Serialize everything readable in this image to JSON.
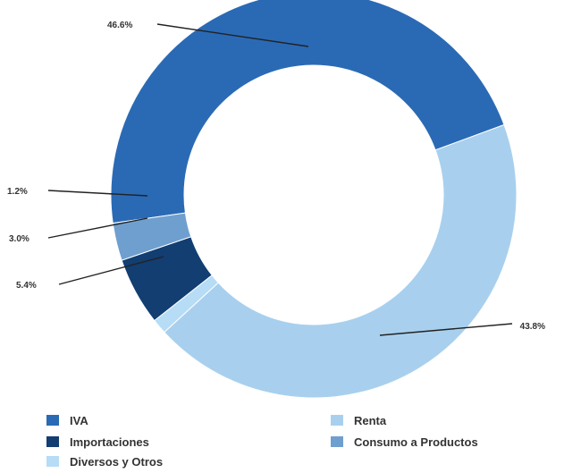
{
  "chart_data": {
    "type": "pie",
    "donut": true,
    "title": "",
    "categories": [
      "IVA",
      "Renta",
      "Diversos y Otros",
      "Importaciones",
      "Consumo a Productos"
    ],
    "values": [
      46.6,
      43.8,
      1.2,
      5.4,
      3.0
    ],
    "value_labels": [
      "46.6%",
      "43.8%",
      "1.2%",
      "5.4%",
      "3.0%"
    ],
    "colors": [
      "#2a6ab5",
      "#a8d0ee",
      "#b7dcf5",
      "#123e72",
      "#6f9fcf"
    ],
    "legend_position": "bottom",
    "legend": [
      {
        "label": "IVA",
        "color": "#2a6ab5"
      },
      {
        "label": "Renta",
        "color": "#a8d0ee"
      },
      {
        "label": "Importaciones",
        "color": "#123e72"
      },
      {
        "label": "Consumo a Productos",
        "color": "#6f9fcf"
      },
      {
        "label": "Diversos y Otros",
        "color": "#b7dcf5"
      }
    ]
  }
}
